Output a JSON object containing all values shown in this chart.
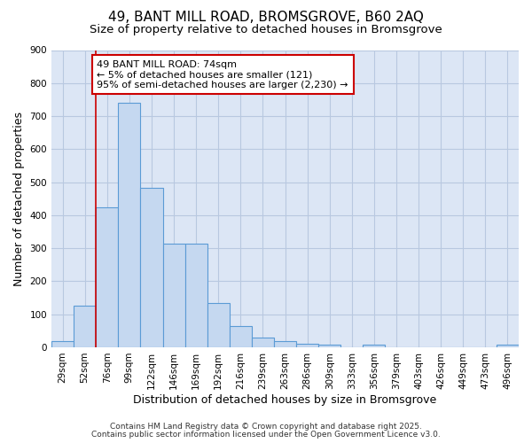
{
  "title1": "49, BANT MILL ROAD, BROMSGROVE, B60 2AQ",
  "title2": "Size of property relative to detached houses in Bromsgrove",
  "xlabel": "Distribution of detached houses by size in Bromsgrove",
  "ylabel": "Number of detached properties",
  "categories": [
    "29sqm",
    "52sqm",
    "76sqm",
    "99sqm",
    "122sqm",
    "146sqm",
    "169sqm",
    "192sqm",
    "216sqm",
    "239sqm",
    "263sqm",
    "286sqm",
    "309sqm",
    "333sqm",
    "356sqm",
    "379sqm",
    "403sqm",
    "426sqm",
    "449sqm",
    "473sqm",
    "496sqm"
  ],
  "values": [
    20,
    125,
    425,
    740,
    483,
    315,
    315,
    135,
    65,
    30,
    20,
    10,
    8,
    0,
    8,
    0,
    0,
    0,
    0,
    0,
    8
  ],
  "bar_color": "#c5d8f0",
  "bar_edge_color": "#5b9bd5",
  "red_line_x": 2,
  "annotation_text": "49 BANT MILL ROAD: 74sqm\n← 5% of detached houses are smaller (121)\n95% of semi-detached houses are larger (2,230) →",
  "annotation_box_color": "#ffffff",
  "annotation_box_edge": "#cc0000",
  "ylim": [
    0,
    900
  ],
  "yticks": [
    0,
    100,
    200,
    300,
    400,
    500,
    600,
    700,
    800,
    900
  ],
  "fig_bg_color": "#ffffff",
  "plot_bg_color": "#dce6f5",
  "grid_color": "#b8c8e0",
  "footer1": "Contains HM Land Registry data © Crown copyright and database right 2025.",
  "footer2": "Contains public sector information licensed under the Open Government Licence v3.0.",
  "title1_fontsize": 11,
  "title2_fontsize": 9.5,
  "tick_fontsize": 7.5,
  "label_fontsize": 9,
  "annotation_fontsize": 8,
  "footer_fontsize": 6.5
}
